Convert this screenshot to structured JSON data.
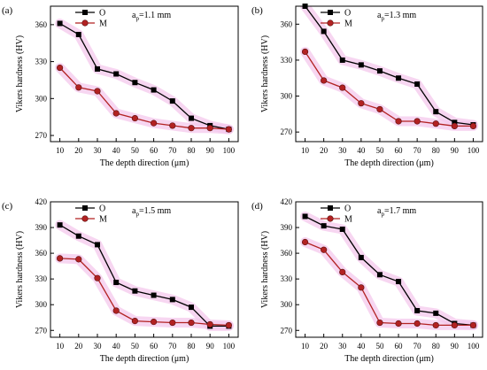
{
  "chart_data": [
    {
      "panel_label": "(a)",
      "type": "line",
      "annotation": {
        "main": "a",
        "sub": "p",
        "rest": "=1.1 mm"
      },
      "xlabel": "The depth direction (μm)",
      "ylabel": "Vikers hardness (HV)",
      "x": [
        10,
        20,
        30,
        40,
        50,
        60,
        70,
        80,
        90,
        100
      ],
      "xlim": [
        5,
        105
      ],
      "ylim": [
        265,
        375
      ],
      "yticks": [
        270,
        300,
        330,
        360
      ],
      "series": [
        {
          "name": "O",
          "color": "#000000",
          "marker": "square",
          "values": [
            361,
            352,
            324,
            320,
            313,
            307,
            298,
            284,
            278,
            275
          ]
        },
        {
          "name": "M",
          "color": "#b22222",
          "marker": "circle",
          "values": [
            325,
            309,
            306,
            288,
            284,
            280,
            278,
            276,
            276,
            275
          ]
        }
      ]
    },
    {
      "panel_label": "(b)",
      "type": "line",
      "annotation": {
        "main": "a",
        "sub": "p",
        "rest": "=1.3 mm"
      },
      "xlabel": "The depth direction (μm)",
      "ylabel": "Vikers hardness (HV)",
      "x": [
        10,
        20,
        30,
        40,
        50,
        60,
        70,
        80,
        90,
        100
      ],
      "xlim": [
        5,
        105
      ],
      "ylim": [
        262,
        375
      ],
      "yticks": [
        270,
        300,
        330,
        360
      ],
      "series": [
        {
          "name": "O",
          "color": "#000000",
          "marker": "square",
          "values": [
            375,
            354,
            330,
            326,
            321,
            315,
            310,
            287,
            278,
            276
          ]
        },
        {
          "name": "M",
          "color": "#b22222",
          "marker": "circle",
          "values": [
            337,
            313,
            307,
            294,
            289,
            279,
            279,
            277,
            275,
            275
          ]
        }
      ]
    },
    {
      "panel_label": "(c)",
      "type": "line",
      "annotation": {
        "main": "a",
        "sub": "p",
        "rest": "=1.5 mm"
      },
      "xlabel": "The depth direction (μm)",
      "ylabel": "Vikers hardness (HV)",
      "x": [
        10,
        20,
        30,
        40,
        50,
        60,
        70,
        80,
        90,
        100
      ],
      "xlim": [
        5,
        105
      ],
      "ylim": [
        262,
        420
      ],
      "yticks": [
        270,
        300,
        330,
        360,
        390,
        420
      ],
      "series": [
        {
          "name": "O",
          "color": "#000000",
          "marker": "square",
          "values": [
            393,
            380,
            370,
            326,
            316,
            311,
            306,
            297,
            275,
            275
          ]
        },
        {
          "name": "M",
          "color": "#b22222",
          "marker": "circle",
          "values": [
            354,
            353,
            331,
            293,
            281,
            280,
            279,
            279,
            277,
            276
          ]
        }
      ]
    },
    {
      "panel_label": "(d)",
      "type": "line",
      "annotation": {
        "main": "a",
        "sub": "p",
        "rest": "=1.7 mm"
      },
      "xlabel": "The depth direction (μm)",
      "ylabel": "Vikers hardness (HV)",
      "x": [
        10,
        20,
        30,
        40,
        50,
        60,
        70,
        80,
        90,
        100
      ],
      "xlim": [
        5,
        105
      ],
      "ylim": [
        262,
        420
      ],
      "yticks": [
        270,
        300,
        330,
        360,
        390,
        420
      ],
      "series": [
        {
          "name": "O",
          "color": "#000000",
          "marker": "square",
          "values": [
            403,
            392,
            388,
            355,
            335,
            327,
            293,
            290,
            278,
            276
          ]
        },
        {
          "name": "M",
          "color": "#b22222",
          "marker": "circle",
          "values": [
            373,
            364,
            338,
            320,
            279,
            278,
            278,
            276,
            276,
            276
          ]
        }
      ]
    }
  ],
  "xticks": [
    10,
    20,
    30,
    40,
    50,
    60,
    70,
    80,
    90,
    100
  ],
  "band_color": "#f4c8ec"
}
